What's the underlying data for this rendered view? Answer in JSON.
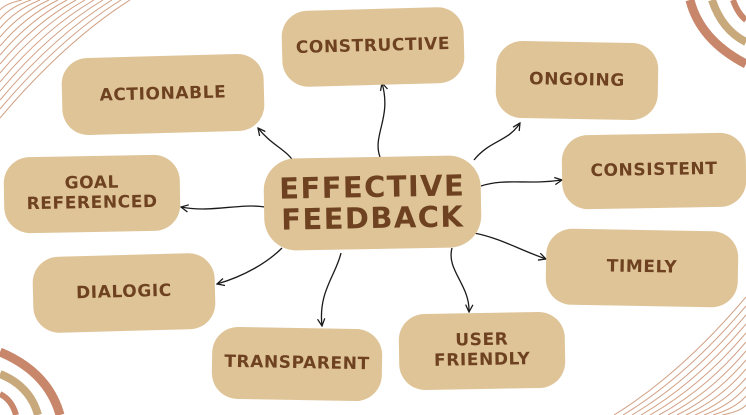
{
  "colors": {
    "card": "#dfc498",
    "text": "#6e4220",
    "arrow": "#1a1a1a",
    "deco_line": "#d2a184",
    "deco_rust": "#c8866a",
    "deco_tan": "#c8a97c"
  },
  "diagram": {
    "center": {
      "line1": "EFFECTIVE",
      "line2": "FEEDBACK"
    },
    "nodes": [
      {
        "id": "constructive",
        "line1": "CONSTRUCTIVE",
        "line2": ""
      },
      {
        "id": "ongoing",
        "line1": "ONGOING",
        "line2": ""
      },
      {
        "id": "actionable",
        "line1": "ACTIONABLE",
        "line2": ""
      },
      {
        "id": "consistent",
        "line1": "CONSISTENT",
        "line2": ""
      },
      {
        "id": "goal-referenced",
        "line1": "GOAL",
        "line2": "REFERENCED"
      },
      {
        "id": "timely",
        "line1": "TIMELY",
        "line2": ""
      },
      {
        "id": "dialogic",
        "line1": "DIALOGIC",
        "line2": ""
      },
      {
        "id": "user-friendly",
        "line1": "USER",
        "line2": "FRIENDLY"
      },
      {
        "id": "transparent",
        "line1": "TRANSPARENT",
        "line2": ""
      }
    ]
  }
}
